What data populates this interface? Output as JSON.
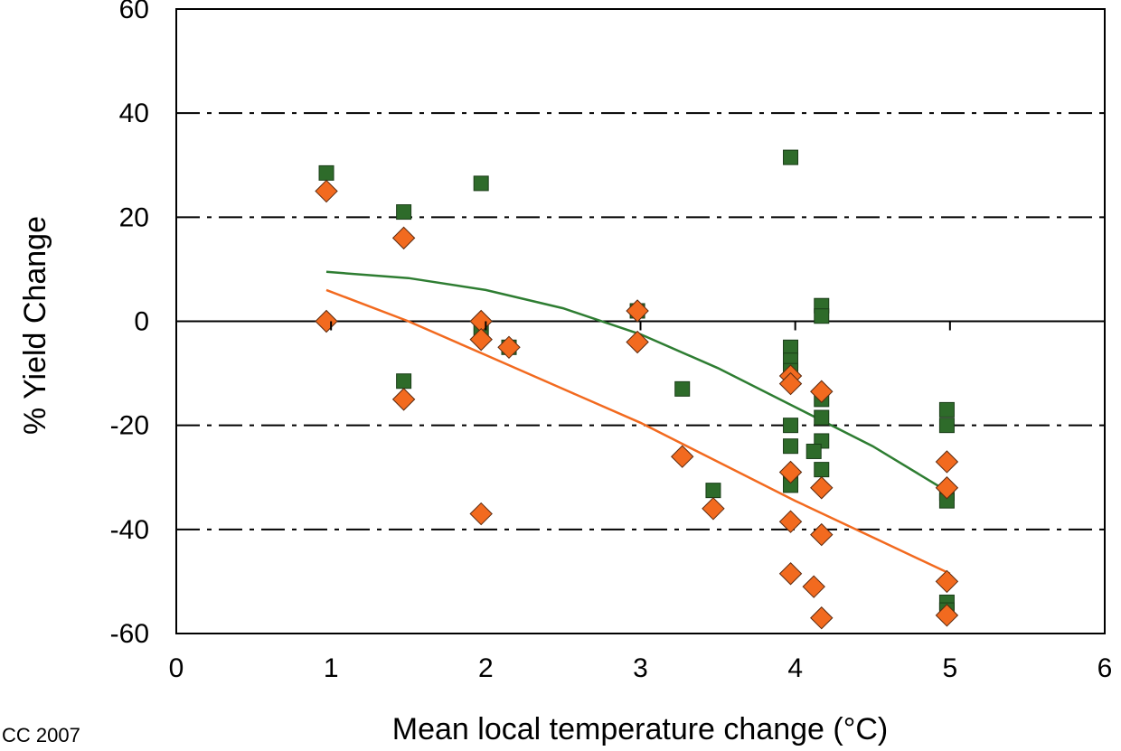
{
  "credit": "CC 2007",
  "chart_data": {
    "type": "scatter",
    "xlabel": "Mean local temperature change (°C)",
    "ylabel": "% Yield Change",
    "xlim": [
      0,
      6
    ],
    "ylim": [
      -60,
      60
    ],
    "x_ticks": [
      0,
      1,
      2,
      3,
      4,
      5,
      6
    ],
    "y_ticks": [
      60,
      40,
      20,
      0,
      -20,
      -40,
      -60
    ],
    "reference_lines": [
      {
        "y": 40,
        "style": "dash-dot",
        "color": "#000000"
      },
      {
        "y": 20,
        "style": "dash-dot",
        "color": "#000000"
      },
      {
        "y": 0,
        "style": "solid",
        "color": "#000000"
      },
      {
        "y": -20,
        "style": "dash-dot",
        "color": "#000000"
      },
      {
        "y": -40,
        "style": "dash-dot",
        "color": "#000000"
      }
    ],
    "series": [
      {
        "marker": "square",
        "color": "#2e6b2a",
        "points": [
          [
            0.97,
            28.5
          ],
          [
            1.47,
            21
          ],
          [
            1.47,
            -11.5
          ],
          [
            1.97,
            26.5
          ],
          [
            1.97,
            -2
          ],
          [
            2.15,
            -5
          ],
          [
            2.98,
            2
          ],
          [
            3.27,
            -13
          ],
          [
            3.47,
            -32.5
          ],
          [
            3.97,
            31.5
          ],
          [
            3.97,
            -5
          ],
          [
            3.97,
            -7.5
          ],
          [
            3.97,
            -9.5
          ],
          [
            3.97,
            -20
          ],
          [
            3.97,
            -24
          ],
          [
            3.97,
            -30.5
          ],
          [
            3.97,
            -31.5
          ],
          [
            4.17,
            3
          ],
          [
            4.17,
            1
          ],
          [
            4.17,
            -15
          ],
          [
            4.17,
            -18.5
          ],
          [
            4.17,
            -23
          ],
          [
            4.12,
            -25
          ],
          [
            4.17,
            -28.5
          ],
          [
            4.98,
            -17
          ],
          [
            4.98,
            -20
          ],
          [
            4.98,
            -33
          ],
          [
            4.98,
            -34.5
          ],
          [
            4.98,
            -54
          ],
          [
            4.98,
            -55.5
          ]
        ]
      },
      {
        "marker": "diamond",
        "color": "#f26a1f",
        "points": [
          [
            0.97,
            25
          ],
          [
            0.97,
            0
          ],
          [
            1.47,
            16
          ],
          [
            1.47,
            -15
          ],
          [
            1.97,
            0
          ],
          [
            1.97,
            -3.5
          ],
          [
            2.15,
            -5
          ],
          [
            1.97,
            -37
          ],
          [
            2.98,
            2
          ],
          [
            2.98,
            -4
          ],
          [
            3.27,
            -26
          ],
          [
            3.47,
            -36
          ],
          [
            3.97,
            -10.5
          ],
          [
            3.97,
            -12
          ],
          [
            3.97,
            -29
          ],
          [
            3.97,
            -38.5
          ],
          [
            3.97,
            -48.5
          ],
          [
            4.17,
            -13.5
          ],
          [
            4.17,
            -32
          ],
          [
            4.17,
            -41
          ],
          [
            4.12,
            -51
          ],
          [
            4.17,
            -57
          ],
          [
            4.98,
            -27
          ],
          [
            4.98,
            -32
          ],
          [
            4.98,
            -50
          ],
          [
            4.98,
            -56.5
          ]
        ]
      }
    ],
    "fit_lines": [
      {
        "color": "#2e7d32",
        "points": [
          [
            0.97,
            9.5
          ],
          [
            1.5,
            8.3
          ],
          [
            2.0,
            6
          ],
          [
            2.5,
            2.5
          ],
          [
            3.0,
            -2.5
          ],
          [
            3.5,
            -9
          ],
          [
            4.0,
            -16.5
          ],
          [
            4.5,
            -24
          ],
          [
            5.0,
            -33
          ]
        ]
      },
      {
        "color": "#f26a1f",
        "points": [
          [
            0.97,
            6
          ],
          [
            1.5,
            0
          ],
          [
            2.0,
            -6.5
          ],
          [
            2.5,
            -13
          ],
          [
            3.0,
            -19.5
          ],
          [
            3.5,
            -27
          ],
          [
            4.0,
            -34.5
          ],
          [
            4.5,
            -41.5
          ],
          [
            5.0,
            -48.5
          ]
        ]
      }
    ]
  }
}
